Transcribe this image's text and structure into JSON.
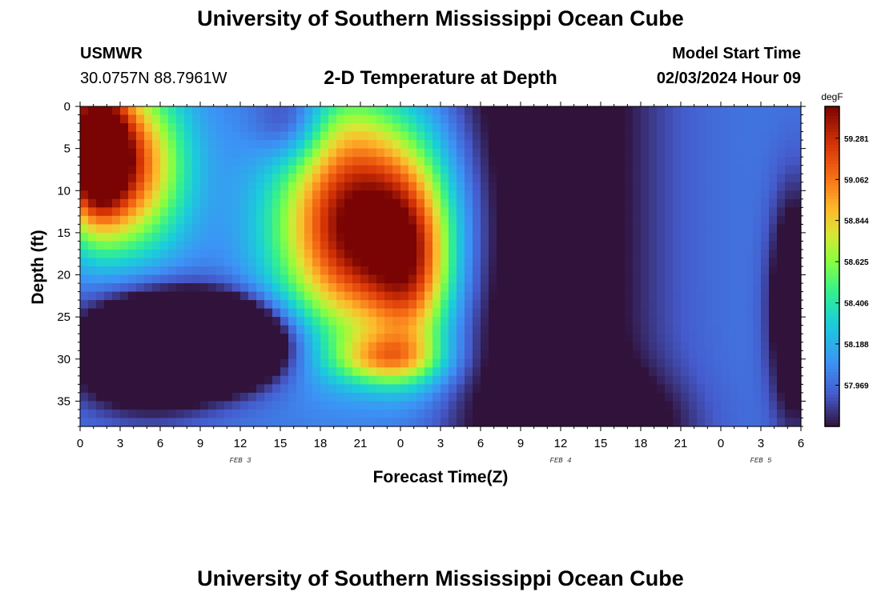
{
  "header": {
    "title_top": "University of Southern Mississippi Ocean Cube",
    "station": "USMWR",
    "coords": "30.0757N  88.7961W",
    "plot_title": "2-D Temperature at Depth",
    "model_start_label": "Model Start Time",
    "model_start_value": "02/03/2024 Hour 09",
    "title_bottom": "University of Southern Mississippi Ocean Cube"
  },
  "chart_data": {
    "type": "heatmap",
    "xlabel": "Forecast Time(Z)",
    "ylabel": "Depth (ft)",
    "x_tick_labels": [
      "0",
      "3",
      "6",
      "9",
      "12",
      "15",
      "18",
      "21",
      "0",
      "3",
      "6",
      "9",
      "12",
      "15",
      "18",
      "21",
      "0",
      "3",
      "6"
    ],
    "x_range_hours": [
      0,
      54
    ],
    "date_labels": [
      {
        "text": "FEB 3",
        "hour": 12
      },
      {
        "text": "FEB 4",
        "hour": 36
      },
      {
        "text": "FEB 5",
        "hour": 51
      }
    ],
    "y_ticks": [
      0,
      5,
      10,
      15,
      20,
      25,
      30,
      35
    ],
    "y_range": [
      0,
      38
    ],
    "y_inverted": true,
    "colorbar": {
      "unit": "degF",
      "labels": [
        "59.281",
        "59.062",
        "58.844",
        "58.625",
        "58.406",
        "58.188",
        "57.969"
      ],
      "values": [
        59.281,
        59.062,
        58.844,
        58.625,
        58.406,
        58.188,
        57.969
      ],
      "min": 57.75,
      "max": 59.45
    },
    "grid": {
      "nx": 90,
      "nz": 38
    }
  }
}
